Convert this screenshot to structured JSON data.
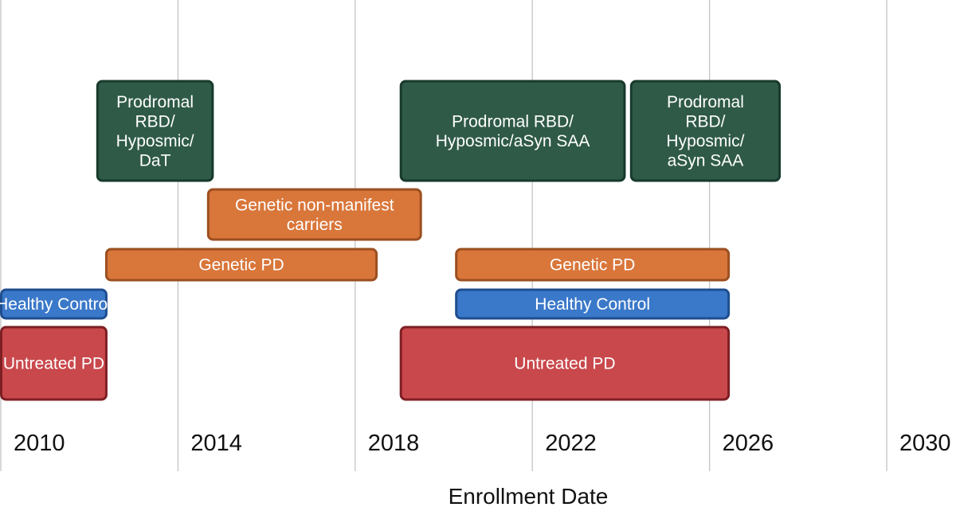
{
  "chart_data": {
    "type": "timeline",
    "title": "",
    "xlabel": "Enrollment Date",
    "x_ticks": [
      2010,
      2014,
      2018,
      2022,
      2026,
      2030
    ],
    "xlim": [
      2009,
      2030.5
    ],
    "grid": true,
    "colors": {
      "prodromal": "#2f5a47",
      "genetic": "#d9763a",
      "healthy": "#3a78c9",
      "untreated": "#c9484c"
    },
    "bars": [
      {
        "label": "Prodromal RBD/ Hyposmic/ DaT",
        "lines": [
          "Prodromal",
          "RBD/",
          "Hyposmic/",
          "DaT"
        ],
        "group": "prodromal",
        "start": 2012.2,
        "end": 2014.8,
        "row": "prodromal"
      },
      {
        "label": "Prodromal RBD/ Hyposmic/aSyn SAA",
        "lines": [
          "Prodromal RBD/",
          "Hyposmic/aSyn SAA"
        ],
        "group": "prodromal",
        "start": 2019.05,
        "end": 2024.1,
        "row": "prodromal"
      },
      {
        "label": "Prodromal RBD/ Hyposmic/ aSyn SAA",
        "lines": [
          "Prodromal",
          "RBD/",
          "Hyposmic/",
          "aSyn SAA"
        ],
        "group": "prodromal",
        "start": 2024.25,
        "end": 2027.6,
        "row": "prodromal"
      },
      {
        "label": "Genetic non-manifest carriers",
        "lines": [
          "Genetic non-manifest",
          "carriers"
        ],
        "group": "genetic",
        "start": 2014.7,
        "end": 2019.5,
        "row": "genetic-carriers"
      },
      {
        "label": "Genetic PD",
        "lines": [
          "Genetic PD"
        ],
        "group": "genetic",
        "start": 2012.4,
        "end": 2018.5,
        "row": "genetic-pd"
      },
      {
        "label": "Genetic PD",
        "lines": [
          "Genetic PD"
        ],
        "group": "genetic",
        "start": 2020.3,
        "end": 2026.45,
        "row": "genetic-pd"
      },
      {
        "label": "Healthy Control",
        "lines": [
          "Healthy Control"
        ],
        "group": "healthy",
        "start": 2009.0,
        "end": 2012.4,
        "row": "healthy"
      },
      {
        "label": "Healthy Control",
        "lines": [
          "Healthy Control"
        ],
        "group": "healthy",
        "start": 2020.3,
        "end": 2026.45,
        "row": "healthy"
      },
      {
        "label": "Untreated PD",
        "lines": [
          "Untreated PD"
        ],
        "group": "untreated",
        "start": 2009.0,
        "end": 2012.4,
        "row": "untreated"
      },
      {
        "label": "Untreated PD",
        "lines": [
          "Untreated PD"
        ],
        "group": "untreated",
        "start": 2019.05,
        "end": 2026.45,
        "row": "untreated"
      }
    ]
  }
}
